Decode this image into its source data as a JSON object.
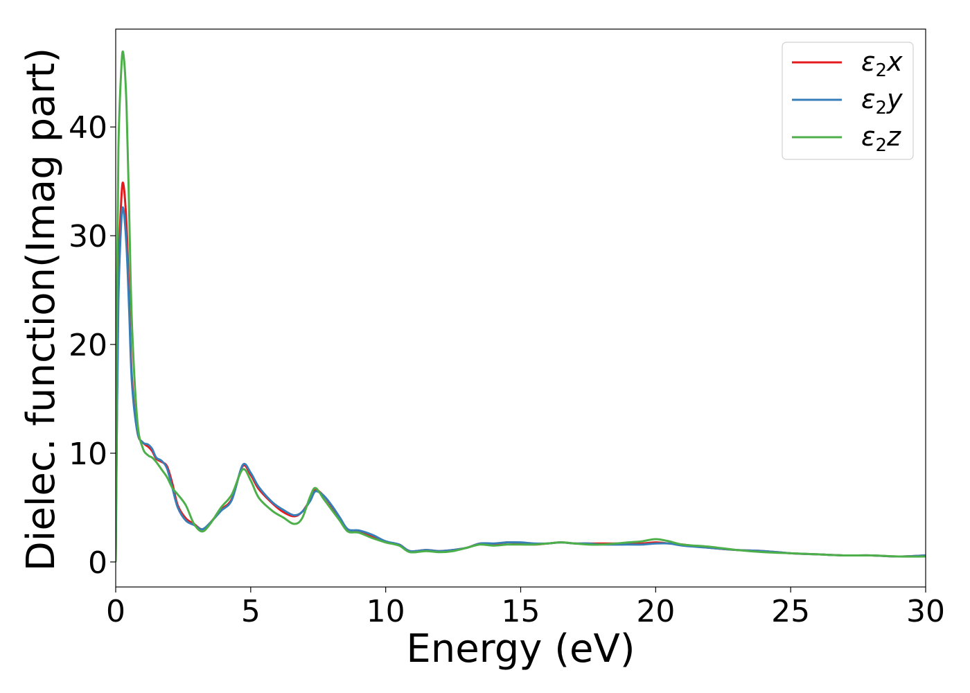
{
  "chart_data": {
    "type": "line",
    "xlabel": "Energy (eV)",
    "ylabel": "Dielec. function(Imag part)",
    "xlim": [
      0,
      30
    ],
    "ylim": [
      -2.3,
      49
    ],
    "xticks": [
      "0",
      "5",
      "10",
      "15",
      "20",
      "25",
      "30"
    ],
    "yticks": [
      "0",
      "10",
      "20",
      "30",
      "40"
    ],
    "legend_position": "top-right",
    "grid": false,
    "series": [
      {
        "name": "ε2x",
        "legend_base": "ε",
        "legend_sub": "2",
        "legend_tail": "x",
        "color": "#e41a1c",
        "points": [
          [
            0,
            0
          ],
          [
            0.05,
            15
          ],
          [
            0.1,
            26
          ],
          [
            0.2,
            33
          ],
          [
            0.28,
            34.8
          ],
          [
            0.4,
            31
          ],
          [
            0.5,
            24
          ],
          [
            0.6,
            17
          ],
          [
            0.8,
            12
          ],
          [
            1.0,
            11
          ],
          [
            1.2,
            10.6
          ],
          [
            1.35,
            10.2
          ],
          [
            1.5,
            9.5
          ],
          [
            1.7,
            9.2
          ],
          [
            1.9,
            8.8
          ],
          [
            2.1,
            7.2
          ],
          [
            2.3,
            5.2
          ],
          [
            2.6,
            4.0
          ],
          [
            2.9,
            3.5
          ],
          [
            3.2,
            3.0
          ],
          [
            3.5,
            3.6
          ],
          [
            3.9,
            4.8
          ],
          [
            4.3,
            5.8
          ],
          [
            4.7,
            8.8
          ],
          [
            5.0,
            8.0
          ],
          [
            5.3,
            6.7
          ],
          [
            5.8,
            5.4
          ],
          [
            6.2,
            4.6
          ],
          [
            6.6,
            4.2
          ],
          [
            6.9,
            4.6
          ],
          [
            7.2,
            5.7
          ],
          [
            7.4,
            6.6
          ],
          [
            7.7,
            6.1
          ],
          [
            8.0,
            5.1
          ],
          [
            8.3,
            4.0
          ],
          [
            8.6,
            3.0
          ],
          [
            9.0,
            2.8
          ],
          [
            9.5,
            2.3
          ],
          [
            10.0,
            1.8
          ],
          [
            10.5,
            1.6
          ],
          [
            10.9,
            1.0
          ],
          [
            11.5,
            1.1
          ],
          [
            12,
            1.0
          ],
          [
            12.5,
            1.1
          ],
          [
            13,
            1.3
          ],
          [
            13.5,
            1.7
          ],
          [
            14,
            1.6
          ],
          [
            14.5,
            1.8
          ],
          [
            15,
            1.7
          ],
          [
            15.5,
            1.6
          ],
          [
            16,
            1.7
          ],
          [
            16.5,
            1.8
          ],
          [
            17,
            1.7
          ],
          [
            17.5,
            1.7
          ],
          [
            18,
            1.7
          ],
          [
            19,
            1.7
          ],
          [
            19.5,
            1.7
          ],
          [
            20,
            1.8
          ],
          [
            20.5,
            1.7
          ],
          [
            21,
            1.6
          ],
          [
            22,
            1.3
          ],
          [
            23,
            1.1
          ],
          [
            24,
            1.0
          ],
          [
            25,
            0.8
          ],
          [
            26,
            0.7
          ],
          [
            27,
            0.6
          ],
          [
            28,
            0.6
          ],
          [
            29,
            0.5
          ],
          [
            30,
            0.6
          ]
        ]
      },
      {
        "name": "ε2y",
        "legend_base": "ε",
        "legend_sub": "2",
        "legend_tail": "y",
        "color": "#377eb8",
        "points": [
          [
            0,
            0
          ],
          [
            0.05,
            14
          ],
          [
            0.1,
            24
          ],
          [
            0.2,
            31
          ],
          [
            0.28,
            32.5
          ],
          [
            0.4,
            29
          ],
          [
            0.5,
            23
          ],
          [
            0.6,
            16.5
          ],
          [
            0.8,
            12
          ],
          [
            1.0,
            11
          ],
          [
            1.2,
            10.8
          ],
          [
            1.35,
            10.4
          ],
          [
            1.5,
            9.6
          ],
          [
            1.7,
            9.3
          ],
          [
            1.9,
            8.6
          ],
          [
            2.1,
            6.8
          ],
          [
            2.3,
            5.0
          ],
          [
            2.6,
            3.8
          ],
          [
            2.9,
            3.4
          ],
          [
            3.2,
            3.0
          ],
          [
            3.5,
            3.6
          ],
          [
            3.9,
            4.7
          ],
          [
            4.3,
            5.7
          ],
          [
            4.7,
            8.9
          ],
          [
            5.0,
            8.2
          ],
          [
            5.3,
            6.9
          ],
          [
            5.8,
            5.5
          ],
          [
            6.2,
            4.8
          ],
          [
            6.6,
            4.3
          ],
          [
            6.9,
            4.6
          ],
          [
            7.2,
            5.6
          ],
          [
            7.4,
            6.5
          ],
          [
            7.7,
            6.1
          ],
          [
            8.0,
            5.2
          ],
          [
            8.3,
            4.1
          ],
          [
            8.6,
            3.0
          ],
          [
            9.0,
            2.9
          ],
          [
            9.5,
            2.5
          ],
          [
            10.0,
            1.9
          ],
          [
            10.5,
            1.6
          ],
          [
            10.9,
            1.0
          ],
          [
            11.5,
            1.1
          ],
          [
            12,
            1.0
          ],
          [
            12.5,
            1.1
          ],
          [
            13,
            1.3
          ],
          [
            13.5,
            1.7
          ],
          [
            14,
            1.7
          ],
          [
            14.5,
            1.8
          ],
          [
            15,
            1.8
          ],
          [
            15.5,
            1.7
          ],
          [
            16,
            1.7
          ],
          [
            16.5,
            1.8
          ],
          [
            17,
            1.7
          ],
          [
            17.5,
            1.7
          ],
          [
            18,
            1.6
          ],
          [
            19,
            1.6
          ],
          [
            19.5,
            1.6
          ],
          [
            20,
            1.7
          ],
          [
            20.5,
            1.7
          ],
          [
            21,
            1.5
          ],
          [
            22,
            1.3
          ],
          [
            23,
            1.1
          ],
          [
            24,
            1.0
          ],
          [
            25,
            0.8
          ],
          [
            26,
            0.7
          ],
          [
            27,
            0.6
          ],
          [
            28,
            0.6
          ],
          [
            29,
            0.5
          ],
          [
            30,
            0.6
          ]
        ]
      },
      {
        "name": "ε2z",
        "legend_base": "ε",
        "legend_sub": "2",
        "legend_tail": "z",
        "color": "#4daf4a",
        "points": [
          [
            0,
            0
          ],
          [
            0.05,
            25
          ],
          [
            0.1,
            38
          ],
          [
            0.2,
            45
          ],
          [
            0.28,
            46.8
          ],
          [
            0.4,
            42
          ],
          [
            0.5,
            32
          ],
          [
            0.6,
            22
          ],
          [
            0.8,
            13
          ],
          [
            1.0,
            10.5
          ],
          [
            1.2,
            9.8
          ],
          [
            1.35,
            9.6
          ],
          [
            1.5,
            9.2
          ],
          [
            1.7,
            8.5
          ],
          [
            1.9,
            7.8
          ],
          [
            2.1,
            6.8
          ],
          [
            2.3,
            6.2
          ],
          [
            2.6,
            5.2
          ],
          [
            2.9,
            3.5
          ],
          [
            3.2,
            2.8
          ],
          [
            3.5,
            3.5
          ],
          [
            3.9,
            5.0
          ],
          [
            4.3,
            6.2
          ],
          [
            4.7,
            8.5
          ],
          [
            5.0,
            7.5
          ],
          [
            5.3,
            5.9
          ],
          [
            5.8,
            4.7
          ],
          [
            6.2,
            4.1
          ],
          [
            6.6,
            3.5
          ],
          [
            6.9,
            4.0
          ],
          [
            7.2,
            6.0
          ],
          [
            7.4,
            6.8
          ],
          [
            7.7,
            5.8
          ],
          [
            8.0,
            4.8
          ],
          [
            8.3,
            3.8
          ],
          [
            8.6,
            2.8
          ],
          [
            9.0,
            2.7
          ],
          [
            9.5,
            2.2
          ],
          [
            10.0,
            1.8
          ],
          [
            10.5,
            1.5
          ],
          [
            10.9,
            0.9
          ],
          [
            11.5,
            1.0
          ],
          [
            12,
            0.9
          ],
          [
            12.5,
            1.0
          ],
          [
            13,
            1.3
          ],
          [
            13.5,
            1.6
          ],
          [
            14,
            1.5
          ],
          [
            14.5,
            1.6
          ],
          [
            15,
            1.6
          ],
          [
            15.5,
            1.6
          ],
          [
            16,
            1.7
          ],
          [
            16.5,
            1.8
          ],
          [
            17,
            1.7
          ],
          [
            17.5,
            1.6
          ],
          [
            18,
            1.6
          ],
          [
            19,
            1.8
          ],
          [
            19.5,
            1.9
          ],
          [
            20,
            2.1
          ],
          [
            20.5,
            1.9
          ],
          [
            21,
            1.6
          ],
          [
            22,
            1.4
          ],
          [
            23,
            1.1
          ],
          [
            24,
            0.9
          ],
          [
            25,
            0.8
          ],
          [
            26,
            0.7
          ],
          [
            27,
            0.6
          ],
          [
            28,
            0.6
          ],
          [
            29,
            0.5
          ],
          [
            30,
            0.5
          ]
        ]
      }
    ]
  }
}
